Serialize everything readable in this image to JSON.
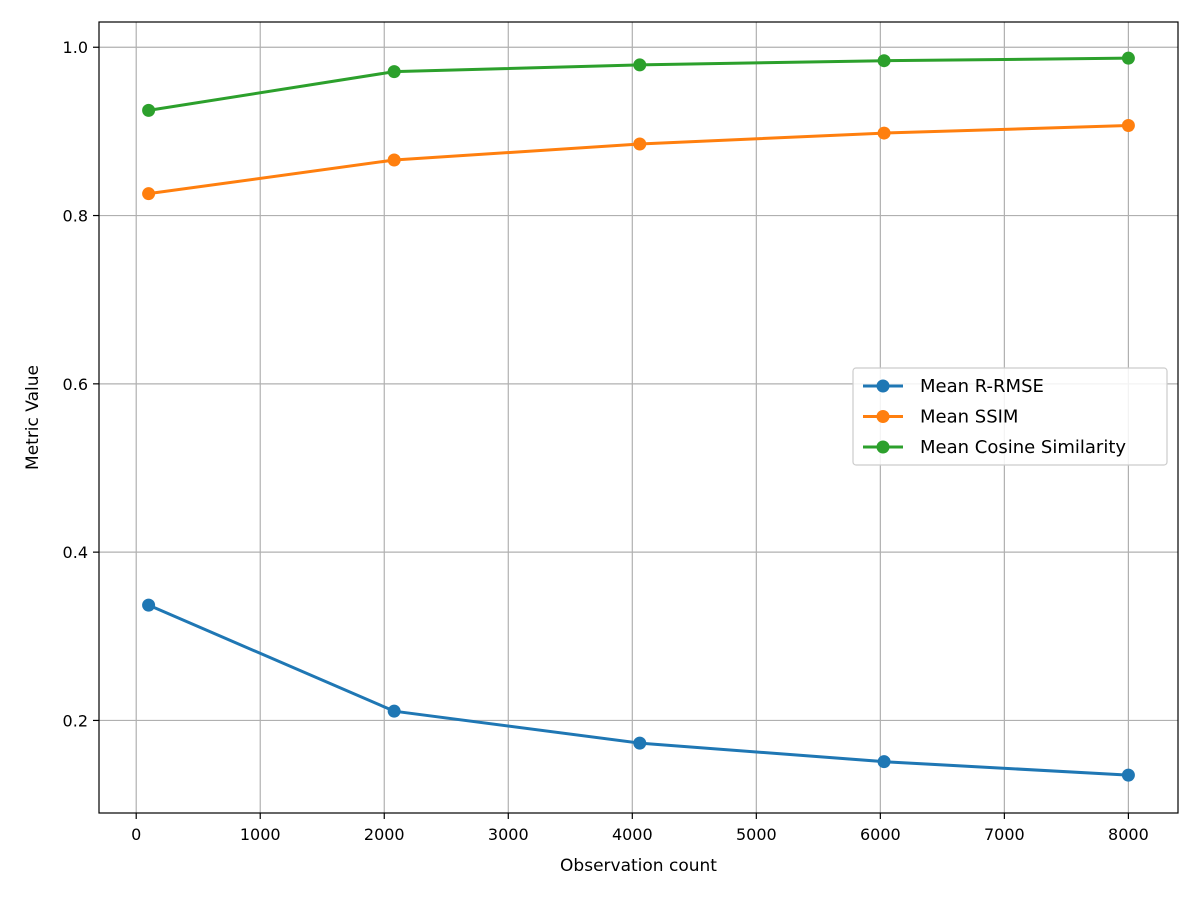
{
  "chart_data": {
    "type": "line",
    "title": "",
    "xlabel": "Observation count",
    "ylabel": "Metric Value",
    "xlim": [
      -300,
      8400
    ],
    "ylim": [
      0.09,
      1.03
    ],
    "xticks": [
      0,
      1000,
      2000,
      3000,
      4000,
      5000,
      6000,
      7000,
      8000
    ],
    "xtick_labels": [
      "0",
      "1000",
      "2000",
      "3000",
      "4000",
      "5000",
      "6000",
      "7000",
      "8000"
    ],
    "yticks": [
      0.2,
      0.4,
      0.6,
      0.8,
      1.0
    ],
    "ytick_labels": [
      "0.2",
      "0.4",
      "0.6",
      "0.8",
      "1.0"
    ],
    "grid": true,
    "legend_position": "center-right",
    "x": [
      100,
      2080,
      4060,
      6030,
      8000
    ],
    "series": [
      {
        "name": "Mean R-RMSE",
        "color": "#1f77b4",
        "values": [
          0.337,
          0.211,
          0.173,
          0.151,
          0.135
        ]
      },
      {
        "name": "Mean SSIM",
        "color": "#ff7f0e",
        "values": [
          0.826,
          0.866,
          0.885,
          0.898,
          0.907
        ]
      },
      {
        "name": "Mean Cosine Similarity",
        "color": "#2ca02c",
        "values": [
          0.925,
          0.971,
          0.979,
          0.984,
          0.987
        ]
      }
    ]
  }
}
